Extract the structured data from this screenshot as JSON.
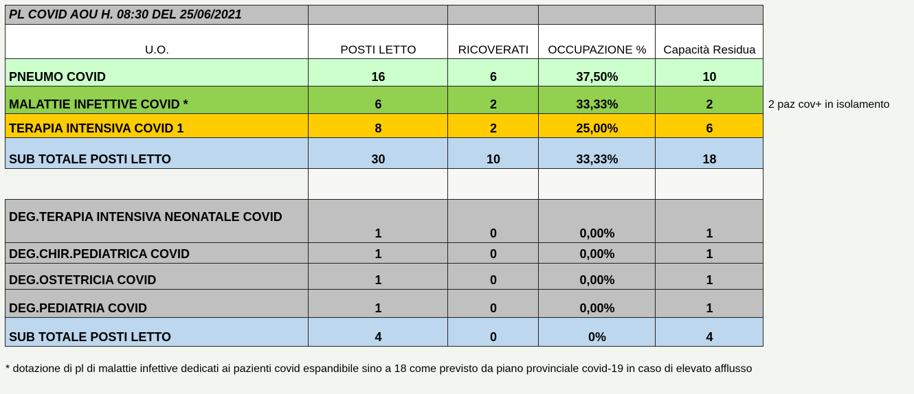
{
  "title": "PL COVID AOU H. 08:30 DEL 25/06/2021",
  "headers": [
    "U.O.",
    "POSTI LETTO",
    "RICOVERATI",
    "OCCUPAZIONE %",
    "Capacità Residua"
  ],
  "colors": {
    "title_gray": "#c0c0c0",
    "header_white": "#ffffff",
    "pneumo": "#ccffcc",
    "malattie": "#92d050",
    "terapia": "#ffcc00",
    "subtotal": "#bdd7ee",
    "deg": "#c0c0c0"
  },
  "rows": [
    {
      "uo": "PNEUMO COVID",
      "posti_letto": "16",
      "ricoverati": "6",
      "occupazione": "37,50%",
      "capacita": "10",
      "color": "pneumo"
    },
    {
      "uo": "MALATTIE INFETTIVE COVID *",
      "posti_letto": "6",
      "ricoverati": "2",
      "occupazione": "33,33%",
      "capacita": "2",
      "color": "malattie",
      "note": "2 paz cov+ in isolamento"
    },
    {
      "uo": "TERAPIA INTENSIVA COVID 1",
      "posti_letto": "8",
      "ricoverati": "2",
      "occupazione": "25,00%",
      "capacita": "6",
      "color": "terapia"
    },
    {
      "uo": "SUB TOTALE POSTI LETTO",
      "posti_letto": "30",
      "ricoverati": "10",
      "occupazione": "33,33%",
      "capacita": "18",
      "color": "subtotal"
    },
    {
      "uo": "",
      "posti_letto": "",
      "ricoverati": "",
      "occupazione": "",
      "capacita": "",
      "color": "blank"
    },
    {
      "uo": "DEG.TERAPIA INTENSIVA NEONATALE COVID",
      "posti_letto": "1",
      "ricoverati": "0",
      "occupazione": "0,00%",
      "capacita": "1",
      "color": "deg"
    },
    {
      "uo": "DEG.CHIR.PEDIATRICA COVID",
      "posti_letto": "1",
      "ricoverati": "0",
      "occupazione": "0,00%",
      "capacita": "1",
      "color": "deg"
    },
    {
      "uo": "DEG.OSTETRICIA COVID",
      "posti_letto": "1",
      "ricoverati": "0",
      "occupazione": "0,00%",
      "capacita": "1",
      "color": "deg"
    },
    {
      "uo": "DEG.PEDIATRIA COVID",
      "posti_letto": "1",
      "ricoverati": "0",
      "occupazione": "0,00%",
      "capacita": "1",
      "color": "deg"
    },
    {
      "uo": "SUB TOTALE POSTI LETTO",
      "posti_letto": "4",
      "ricoverati": "0",
      "occupazione": "0%",
      "capacita": "4",
      "color": "subtotal"
    }
  ],
  "footnote": "* dotazione di pl di malattie infettive dedicati ai pazienti covid espandibile sino a 18 come previsto da piano provinciale covid-19 in caso di elevato afflusso"
}
